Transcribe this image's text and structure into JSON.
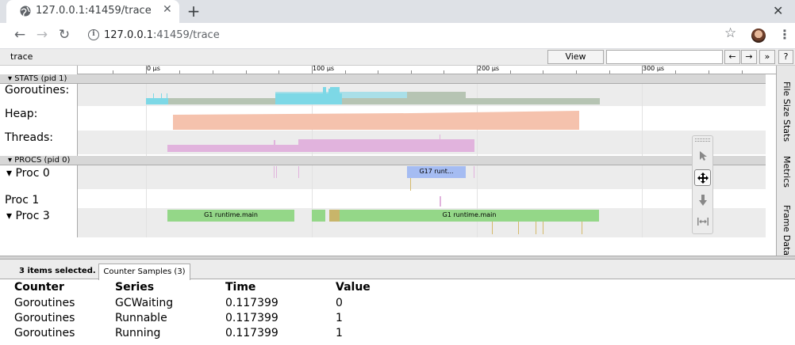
{
  "browser": {
    "tab_title": "127.0.0.1:41459/trace",
    "tab_close": "✕",
    "new_tab": "+",
    "window_close": "✕",
    "url_host": "127.0.0.1",
    "url_rest": ":41459/trace",
    "back": "←",
    "forward": "→",
    "reload": "↻",
    "star": "☆",
    "menu": "⋮"
  },
  "tv_header": {
    "title": "trace",
    "view_options": "View Options",
    "find_value": "",
    "prev": "←",
    "next": "→",
    "expand": "»",
    "help": "?"
  },
  "ruler": {
    "labels": [
      "0 μs",
      "100 μs",
      "200 μs",
      "300 μs"
    ]
  },
  "groups": {
    "stats": "▾ STATS (pid 1)",
    "procs": "▾ PROCS (pid 0)"
  },
  "tracks": {
    "goroutines": "Goroutines:",
    "heap": "Heap:",
    "threads": "Threads:",
    "proc0": "▾  Proc 0",
    "proc1": "Proc 1",
    "proc3": "▾  Proc 3"
  },
  "slices": {
    "g17": "G17 runt...",
    "g1_a": "G1 runtime.main",
    "g1_b": "G1 runtime.main"
  },
  "colors": {
    "running": "#7dd8e6",
    "runnable": "#a9dfe8",
    "gcwaiting": "#b6c4b3",
    "heap": "#f5c2ad",
    "threads": "#e1b3dd",
    "g1": "#94d788",
    "g17": "#a5bcf2",
    "syscall": "#d4b96a"
  },
  "side_tabs": [
    "File Size Stats",
    "Metrics",
    "Frame Data"
  ],
  "mouse_modes": {
    "select": "select-icon",
    "pan": "pan-icon",
    "zoom": "zoom-icon",
    "timing": "timing-icon"
  },
  "analysis": {
    "selection_count": "3 items selected.",
    "tab_label": "Counter Samples (3)",
    "columns": [
      "Counter",
      "Series",
      "Time",
      "Value"
    ],
    "rows": [
      [
        "Goroutines",
        "GCWaiting",
        "0.117399",
        "0"
      ],
      [
        "Goroutines",
        "Runnable",
        "0.117399",
        "1"
      ],
      [
        "Goroutines",
        "Running",
        "0.117399",
        "1"
      ]
    ]
  }
}
